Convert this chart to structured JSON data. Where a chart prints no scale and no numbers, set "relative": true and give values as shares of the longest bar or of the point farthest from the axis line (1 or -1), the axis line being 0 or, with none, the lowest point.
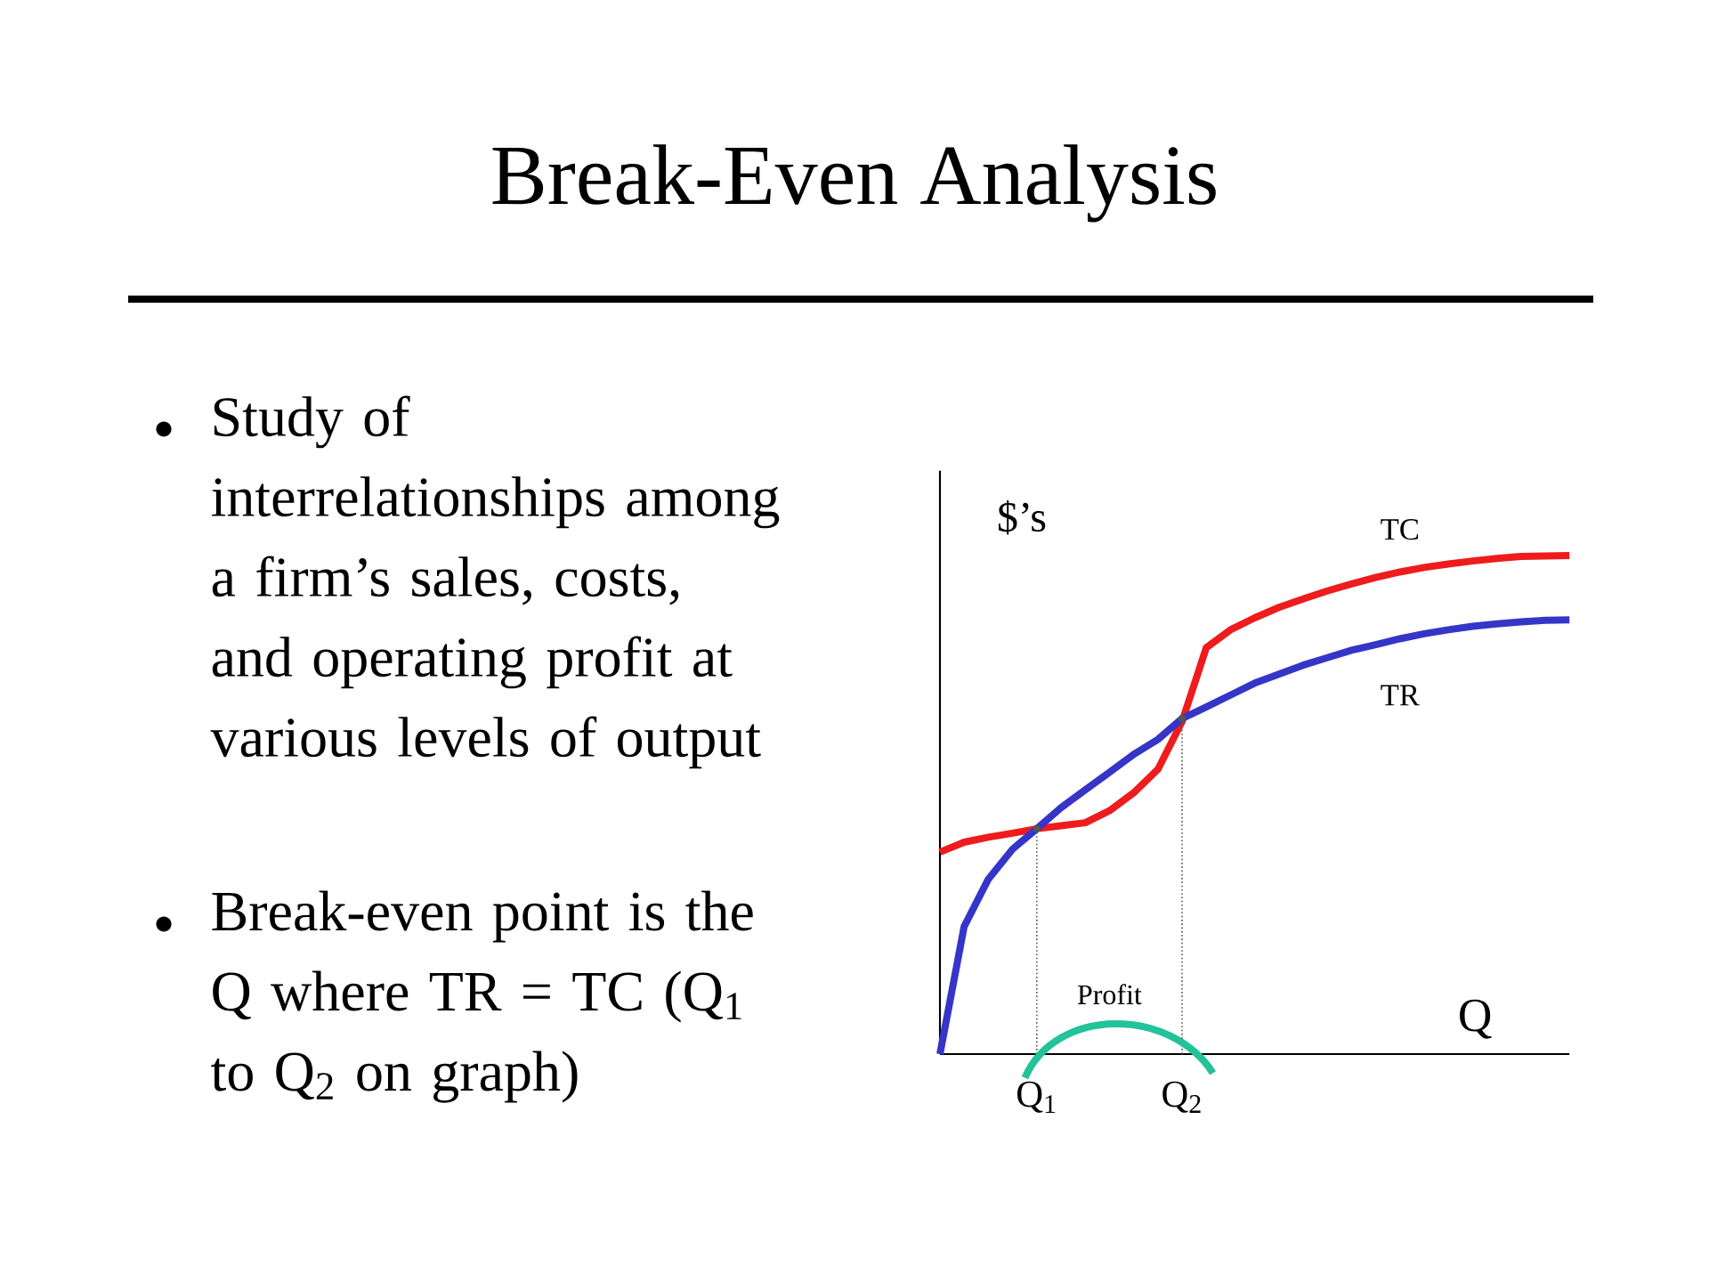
{
  "chart_data": {
    "type": "line",
    "title": "Break-Even Analysis",
    "xlabel": "Q",
    "ylabel": "$’s",
    "relative": true,
    "marker": "none",
    "annotations": [
      "Study of interrelationships among a firm’s sales, costs, and operating profit at various levels of output",
      "Break-even point is the Q where TR = TC (Q$_{1}$ to Q$_{2}$ on graph)",
      "Profit"
    ],
    "categories": [
      null,
      null,
      null,
      null,
      "Q$_{1}$",
      null,
      null,
      null,
      null,
      null,
      "Q$_{2}$",
      null,
      null,
      null,
      null,
      null,
      null,
      null,
      null,
      null,
      null,
      null,
      null,
      null,
      null,
      null,
      null
    ],
    "series": [
      {
        "name": "TC",
        "color": "#ee1c1c",
        "line_style": "solid",
        "values": [
          0.405,
          0.425,
          0.435,
          0.443,
          0.452,
          0.458,
          0.464,
          0.488,
          0.524,
          0.571,
          0.667,
          0.815,
          0.851,
          0.875,
          0.896,
          0.913,
          0.929,
          0.943,
          0.956,
          0.967,
          0.976,
          0.983,
          0.989,
          0.994,
          0.998,
          0.999,
          1
        ]
      },
      {
        "name": "TR",
        "color": "#3535c8",
        "line_style": "solid",
        "values": [
          0,
          0.256,
          0.351,
          0.411,
          0.452,
          0.494,
          0.53,
          0.565,
          0.601,
          0.631,
          0.673,
          0.696,
          0.72,
          0.744,
          0.762,
          0.78,
          0.795,
          0.81,
          0.821,
          0.833,
          0.843,
          0.851,
          0.858,
          0.863,
          0.867,
          0.87,
          0.871
        ]
      },
      {
        "type": "lollipop",
        "marker": "circle",
        "color": "#555555",
        "line_style": "dotted",
        "values": [
          null,
          null,
          null,
          null,
          0.452,
          null,
          null,
          null,
          null,
          null,
          0.673,
          null,
          null,
          null,
          null,
          null,
          null,
          null,
          null,
          null,
          null,
          null,
          null,
          null,
          null,
          null,
          null
        ]
      }
    ]
  }
}
